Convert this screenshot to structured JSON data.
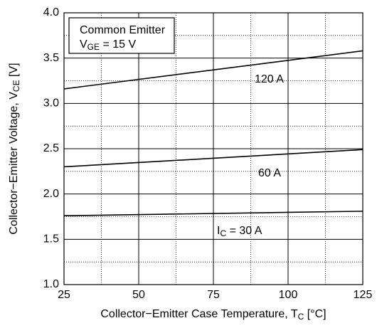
{
  "chart_data": {
    "type": "line",
    "legend_text": [
      "Common Emitter",
      [
        "V",
        "GE",
        " = 15 V"
      ]
    ],
    "xlabel": [
      "Collector−Emitter Case Temperature, T",
      "C",
      " [°C]"
    ],
    "ylabel": [
      "Collector−Emitter Voltage, V",
      "CE",
      " [V]"
    ],
    "xlim": [
      25,
      125
    ],
    "ylim": [
      1.0,
      4.0
    ],
    "xticks": [
      25,
      50,
      75,
      100,
      125
    ],
    "yticks": [
      {
        "value": 1.0,
        "label": "1.0"
      },
      1.5,
      {
        "value": 2.0,
        "label": "2.0"
      },
      2.5,
      {
        "value": 3.0,
        "label": "3.0"
      },
      3.5,
      {
        "value": 4.0,
        "label": "4.0"
      }
    ],
    "grid": true,
    "series": [
      {
        "name": [
          "120 A"
        ],
        "color": "#000000",
        "x": [
          25,
          125
        ],
        "values": [
          3.16,
          3.58
        ]
      },
      {
        "name": [
          "60 A"
        ],
        "color": "#000000",
        "x": [
          25,
          125
        ],
        "values": [
          2.3,
          2.49
        ]
      },
      {
        "name": [
          "I",
          "C",
          " = 30 A"
        ],
        "color": "#000000",
        "x": [
          25,
          125
        ],
        "values": [
          1.76,
          1.81
        ]
      }
    ]
  }
}
